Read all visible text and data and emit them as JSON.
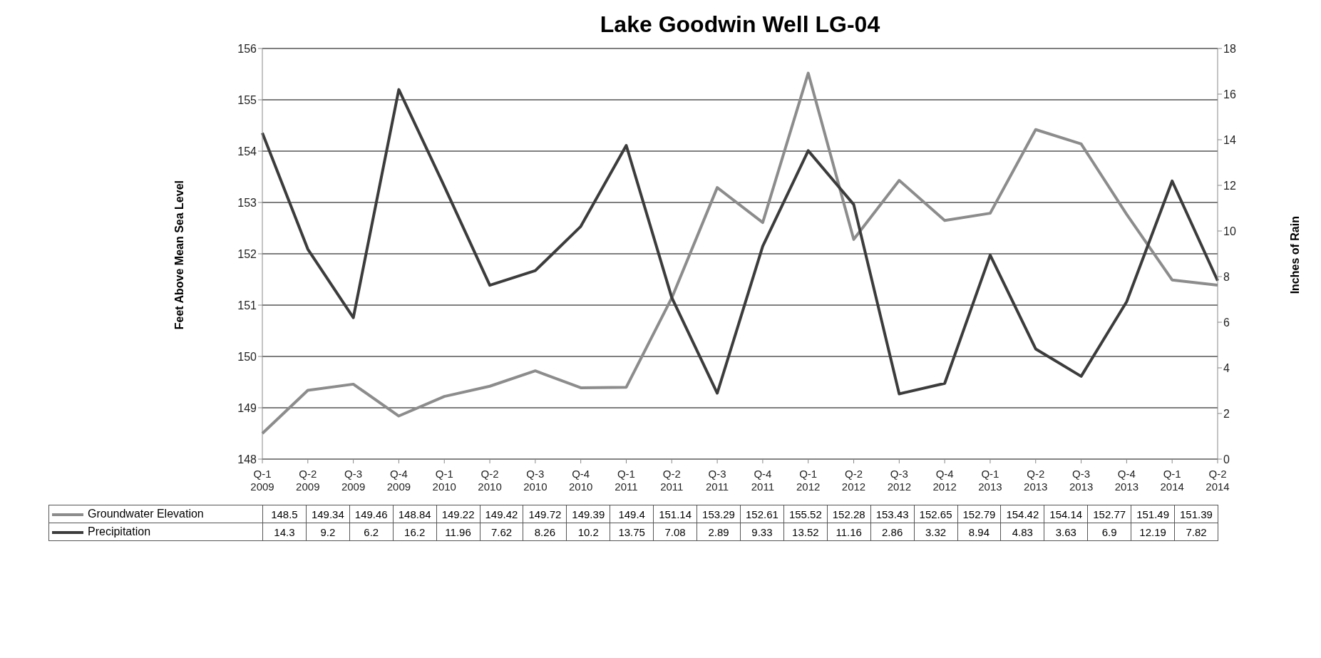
{
  "chart_data": {
    "type": "line",
    "title": "Lake Goodwin Well LG-04",
    "ylabel": "Feet Above Mean Sea Level",
    "y2label": "Inches of Rain",
    "categories": [
      "Q-1\n2009",
      "Q-2\n2009",
      "Q-3\n2009",
      "Q-4\n2009",
      "Q-1\n2010",
      "Q-2\n2010",
      "Q-3\n2010",
      "Q-4\n2010",
      "Q-1\n2011",
      "Q-2\n2011",
      "Q-3\n2011",
      "Q-4\n2011",
      "Q-1\n2012",
      "Q-2\n2012",
      "Q-3\n2012",
      "Q-4\n2012",
      "Q-1\n2013",
      "Q-2\n2013",
      "Q-3\n2013",
      "Q-4\n2013",
      "Q-1\n2014",
      "Q-2\n2014"
    ],
    "series": [
      {
        "name": "Groundwater Elevation",
        "color": "#8c8c8c",
        "values": [
          148.5,
          149.34,
          149.46,
          148.84,
          149.22,
          149.42,
          149.72,
          149.39,
          149.4,
          151.14,
          153.29,
          152.61,
          155.52,
          152.28,
          153.43,
          152.65,
          152.79,
          154.42,
          154.14,
          152.77,
          151.49,
          151.39
        ]
      },
      {
        "name": "Precipitation",
        "color": "#3c3c3c",
        "axis": "y2",
        "values": [
          14.3,
          9.2,
          6.2,
          16.2,
          11.96,
          7.62,
          8.26,
          10.2,
          13.75,
          7.08,
          2.89,
          9.33,
          13.52,
          11.16,
          2.86,
          3.32,
          8.94,
          4.83,
          3.63,
          6.9,
          12.19,
          7.82
        ]
      }
    ],
    "ylim": [
      148,
      156
    ],
    "yticks": [
      148,
      149,
      150,
      151,
      152,
      153,
      154,
      155,
      156
    ],
    "y2lim": [
      0,
      18
    ],
    "y2ticks": [
      0,
      2,
      4,
      6,
      8,
      10,
      12,
      14,
      16,
      18
    ],
    "grid": "y",
    "legend": "bottom",
    "marker": "none",
    "line_style": "solid",
    "data_labels": true
  }
}
